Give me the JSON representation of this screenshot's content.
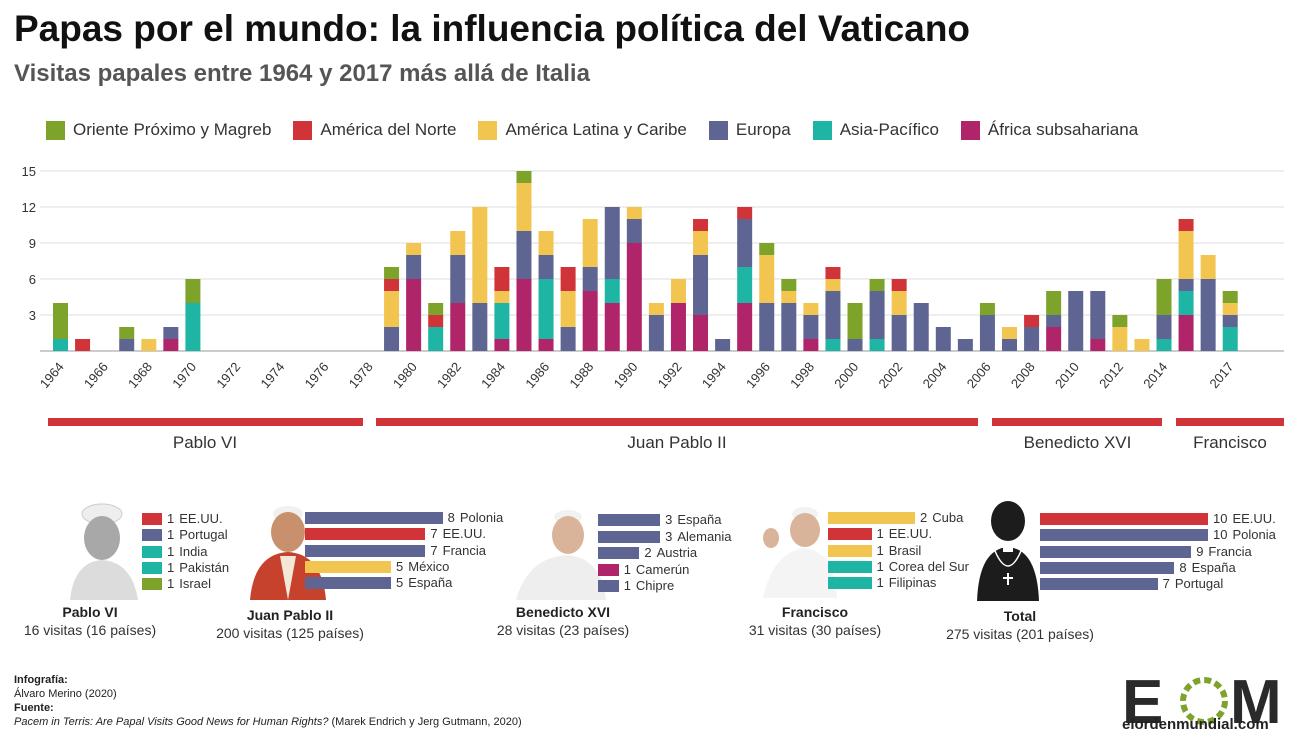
{
  "header": {
    "title": "Papas por el mundo: la influencia política del Vaticano",
    "subtitle": "Visitas papales entre 1964 y 2017 más allá de Italia"
  },
  "legend": [
    {
      "label": "Oriente Próximo y Magreb",
      "color": "#7ea32b"
    },
    {
      "label": "América del Norte",
      "color": "#d13438"
    },
    {
      "label": "América Latina y Caribe",
      "color": "#f2c550"
    },
    {
      "label": "Europa",
      "color": "#5f6593"
    },
    {
      "label": "Asia-Pacífico",
      "color": "#1fb5a5"
    },
    {
      "label": "África subsahariana",
      "color": "#b0256a"
    }
  ],
  "chart_data": {
    "type": "bar",
    "stacked": true,
    "x": [
      1964,
      1965,
      1966,
      1967,
      1968,
      1969,
      1970,
      1971,
      1972,
      1973,
      1974,
      1975,
      1976,
      1977,
      1978,
      1979,
      1980,
      1981,
      1982,
      1983,
      1984,
      1985,
      1986,
      1987,
      1988,
      1989,
      1990,
      1991,
      1992,
      1993,
      1994,
      1995,
      1996,
      1997,
      1998,
      1999,
      2000,
      2001,
      2002,
      2003,
      2004,
      2005,
      2006,
      2007,
      2008,
      2009,
      2010,
      2011,
      2012,
      2013,
      2014,
      2015,
      2016,
      2017
    ],
    "x_tick_labels": [
      "1964",
      "1966",
      "1968",
      "1970",
      "1972",
      "1974",
      "1976",
      "1978",
      "1980",
      "1982",
      "1984",
      "1986",
      "1988",
      "1990",
      "1992",
      "1994",
      "1996",
      "1998",
      "2000",
      "2002",
      "2004",
      "2006",
      "2008",
      "2010",
      "2012",
      "2014",
      "2017"
    ],
    "y_ticks": [
      "3",
      "6",
      "9",
      "12",
      "15"
    ],
    "ylim": [
      0,
      15
    ],
    "series": [
      {
        "name": "África subsahariana",
        "color": "#b0256a",
        "values": [
          0,
          0,
          0,
          0,
          0,
          1,
          0,
          0,
          0,
          0,
          0,
          0,
          0,
          0,
          0,
          0,
          6,
          0,
          4,
          0,
          1,
          6,
          1,
          0,
          5,
          4,
          9,
          0,
          4,
          3,
          0,
          4,
          0,
          0,
          1,
          0,
          0,
          0,
          0,
          0,
          0,
          0,
          0,
          0,
          0,
          2,
          0,
          1,
          0,
          0,
          0,
          3,
          0,
          0
        ]
      },
      {
        "name": "Asia-Pacífico",
        "color": "#1fb5a5",
        "values": [
          1,
          0,
          0,
          0,
          0,
          0,
          4,
          0,
          0,
          0,
          0,
          0,
          0,
          0,
          0,
          0,
          0,
          2,
          0,
          0,
          3,
          0,
          5,
          0,
          0,
          2,
          0,
          0,
          0,
          0,
          0,
          3,
          0,
          0,
          0,
          1,
          0,
          1,
          0,
          0,
          0,
          0,
          0,
          0,
          0,
          0,
          0,
          0,
          0,
          0,
          1,
          2,
          0,
          2
        ]
      },
      {
        "name": "Europa",
        "color": "#5f6593",
        "values": [
          0,
          0,
          0,
          1,
          0,
          1,
          0,
          0,
          0,
          0,
          0,
          0,
          0,
          0,
          0,
          2,
          2,
          0,
          4,
          4,
          0,
          4,
          2,
          2,
          2,
          6,
          2,
          3,
          0,
          5,
          1,
          4,
          4,
          4,
          2,
          4,
          1,
          4,
          3,
          4,
          2,
          1,
          3,
          1,
          2,
          1,
          5,
          4,
          0,
          0,
          2,
          1,
          6,
          1
        ]
      },
      {
        "name": "América Latina y Caribe",
        "color": "#f2c550",
        "values": [
          0,
          0,
          0,
          0,
          1,
          0,
          0,
          0,
          0,
          0,
          0,
          0,
          0,
          0,
          0,
          3,
          1,
          0,
          2,
          8,
          1,
          4,
          2,
          3,
          4,
          0,
          1,
          1,
          2,
          2,
          0,
          0,
          4,
          1,
          1,
          1,
          0,
          0,
          2,
          0,
          0,
          0,
          0,
          1,
          0,
          0,
          0,
          0,
          2,
          1,
          0,
          4,
          2,
          1
        ]
      },
      {
        "name": "América del Norte",
        "color": "#d13438",
        "values": [
          0,
          1,
          0,
          0,
          0,
          0,
          0,
          0,
          0,
          0,
          0,
          0,
          0,
          0,
          0,
          1,
          0,
          1,
          0,
          0,
          2,
          0,
          0,
          2,
          0,
          0,
          0,
          0,
          0,
          1,
          0,
          1,
          0,
          0,
          0,
          1,
          0,
          0,
          1,
          0,
          0,
          0,
          0,
          0,
          1,
          0,
          0,
          0,
          0,
          0,
          0,
          1,
          0,
          0
        ]
      },
      {
        "name": "Oriente Próximo y Magreb",
        "color": "#7ea32b",
        "values": [
          3,
          0,
          0,
          1,
          0,
          0,
          2,
          0,
          0,
          0,
          0,
          0,
          0,
          0,
          0,
          1,
          0,
          1,
          0,
          0,
          0,
          1,
          0,
          0,
          0,
          0,
          0,
          0,
          0,
          0,
          0,
          0,
          1,
          1,
          0,
          0,
          3,
          1,
          0,
          0,
          0,
          0,
          1,
          0,
          0,
          2,
          0,
          0,
          1,
          0,
          3,
          0,
          0,
          1
        ]
      }
    ]
  },
  "eras": [
    "Pablo VI",
    "Juan Pablo II",
    "Benedicto XVI",
    "Francisco"
  ],
  "popes": [
    {
      "name": "Pablo VI",
      "visits": "16 visitas (16 países)",
      "bars": [
        {
          "value": 1,
          "label": "1",
          "country": "EE.UU.",
          "color": "#d13438"
        },
        {
          "value": 1,
          "label": "1",
          "country": "Portugal",
          "color": "#5f6593"
        },
        {
          "value": 1,
          "label": "1",
          "country": "India",
          "color": "#1fb5a5"
        },
        {
          "value": 1,
          "label": "1",
          "country": "Pakistán",
          "color": "#1fb5a5"
        },
        {
          "value": 1,
          "label": "1",
          "country": "Israel",
          "color": "#7ea32b"
        }
      ]
    },
    {
      "name": "Juan Pablo II",
      "visits": "200 visitas (125 países)",
      "bars": [
        {
          "value": 8,
          "label": "8",
          "country": "Polonia",
          "color": "#5f6593"
        },
        {
          "value": 7,
          "label": "7",
          "country": "EE.UU.",
          "color": "#d13438"
        },
        {
          "value": 7,
          "label": "7",
          "country": "Francia",
          "color": "#5f6593"
        },
        {
          "value": 5,
          "label": "5",
          "country": "México",
          "color": "#f2c550"
        },
        {
          "value": 5,
          "label": "5",
          "country": "España",
          "color": "#5f6593"
        }
      ]
    },
    {
      "name": "Benedicto XVI",
      "visits": "28 visitas (23 países)",
      "bars": [
        {
          "value": 3,
          "label": "3",
          "country": "España",
          "color": "#5f6593"
        },
        {
          "value": 3,
          "label": "3",
          "country": "Alemania",
          "color": "#5f6593"
        },
        {
          "value": 2,
          "label": "2",
          "country": "Austria",
          "color": "#5f6593"
        },
        {
          "value": 1,
          "label": "1",
          "country": "Camerún",
          "color": "#b0256a"
        },
        {
          "value": 1,
          "label": "1",
          "country": "Chipre",
          "color": "#5f6593"
        }
      ]
    },
    {
      "name": "Francisco",
      "visits": "31 visitas (30 países)",
      "bars": [
        {
          "value": 2,
          "label": "2",
          "country": "Cuba",
          "color": "#f2c550"
        },
        {
          "value": 1,
          "label": "1",
          "country": "EE.UU.",
          "color": "#d13438"
        },
        {
          "value": 1,
          "label": "1",
          "country": "Brasil",
          "color": "#f2c550"
        },
        {
          "value": 1,
          "label": "1",
          "country": "Corea del Sur",
          "color": "#1fb5a5"
        },
        {
          "value": 1,
          "label": "1",
          "country": "Filipinas",
          "color": "#1fb5a5"
        }
      ]
    },
    {
      "name": "Total",
      "visits": "275 visitas (201 países)",
      "bars": [
        {
          "value": 10,
          "label": "10",
          "country": "EE.UU.",
          "color": "#d13438"
        },
        {
          "value": 10,
          "label": "10",
          "country": "Polonia",
          "color": "#5f6593"
        },
        {
          "value": 9,
          "label": "9",
          "country": "Francia",
          "color": "#5f6593"
        },
        {
          "value": 8,
          "label": "8",
          "country": "España",
          "color": "#5f6593"
        },
        {
          "value": 7,
          "label": "7",
          "country": "Portugal",
          "color": "#5f6593"
        }
      ]
    }
  ],
  "credits": {
    "info_label": "Infografía:",
    "author": "Álvaro Merino (2020)",
    "source_label": "Fuente:",
    "source_title": "Pacem in Terris: Are Papal Visits Good News for Human Rights?",
    "source_authors": " (Marek Endrich y Jerg Gutmann, 2020)"
  },
  "logo": {
    "letters": "EOM",
    "site": "elordenmundial.com"
  }
}
